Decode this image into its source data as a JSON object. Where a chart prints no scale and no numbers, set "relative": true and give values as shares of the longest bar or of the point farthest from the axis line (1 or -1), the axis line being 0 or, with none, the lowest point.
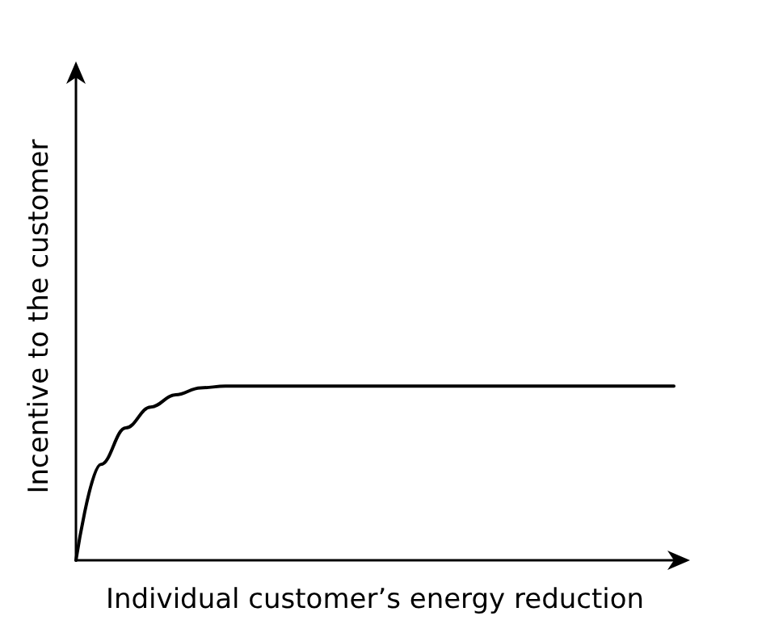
{
  "chart_data": {
    "type": "line",
    "relative": true,
    "xlabel": "Individual customer’s energy reduction",
    "ylabel": "Incentive to the customer",
    "categories": [
      null,
      null,
      null,
      null,
      null,
      null,
      null,
      null,
      null,
      null,
      null,
      null,
      null,
      null,
      null,
      null,
      null,
      null,
      null,
      null,
      null,
      null,
      null,
      null,
      null
    ],
    "series": [
      {
        "color": "#000000",
        "values": [
          0,
          0.55,
          0.76,
          0.88,
          0.95,
          0.99,
          1,
          1,
          1,
          1,
          1,
          1,
          1,
          1,
          1,
          1,
          1,
          1,
          1,
          1,
          1,
          1,
          1,
          1,
          1
        ]
      }
    ],
    "marker": "none",
    "line_style": "solid",
    "grid": false
  }
}
